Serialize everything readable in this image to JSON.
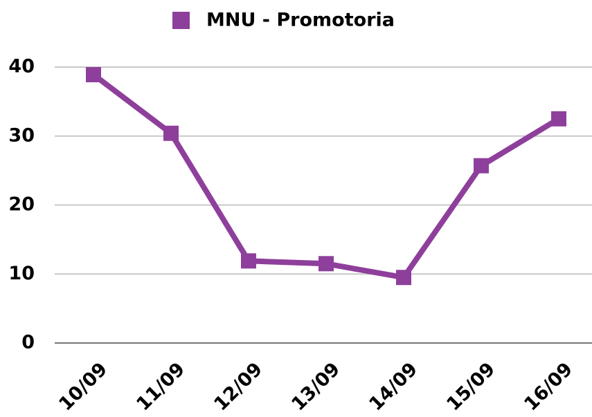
{
  "chart_data": {
    "type": "line",
    "categories": [
      "10/09",
      "11/09",
      "12/09",
      "13/09",
      "14/09",
      "15/09",
      "16/09"
    ],
    "series": [
      {
        "name": "MNU - Promotoria",
        "color": "#8e3f9b",
        "values": [
          38.9,
          30.4,
          11.9,
          11.5,
          9.5,
          25.7,
          32.5
        ]
      }
    ],
    "ylim": [
      0,
      40
    ],
    "yticks": [
      0,
      10,
      20,
      30,
      40
    ],
    "grid": true,
    "legend": "top"
  }
}
